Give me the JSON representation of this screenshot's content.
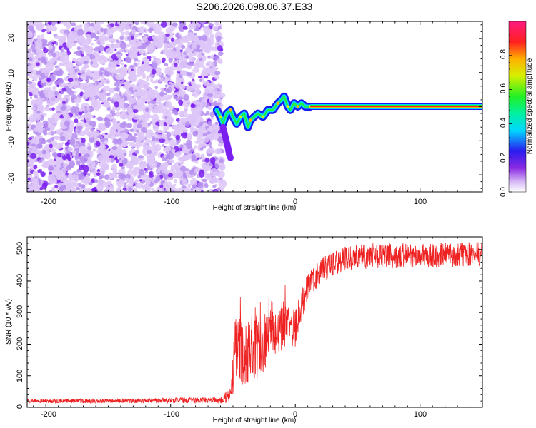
{
  "figure_title": "S206.2026.098.06.37.E33",
  "colors": {
    "snr_line": "#ee2222",
    "frame": "#000000",
    "background": "#ffffff",
    "noise_light": "#ddc6f8",
    "noise_mid": "#b58ef0",
    "noise_dark": "#7a1ff0"
  },
  "chart_data": [
    {
      "type": "heatmap",
      "title": "",
      "xlabel": "Height of straight line (km)",
      "ylabel": "Frequency (Hz)",
      "xlim": [
        -215,
        150
      ],
      "ylim": [
        -25,
        25
      ],
      "x_ticks": [
        -200,
        -100,
        0,
        100
      ],
      "x_tick_labels": [
        "-200",
        "-100",
        "0",
        "100"
      ],
      "y_ticks": [
        -20,
        -10,
        0,
        10,
        20
      ],
      "y_tick_labels": [
        "-20",
        "-10",
        "0",
        "10",
        "20"
      ],
      "colorbar": {
        "label": "Normalized spectral amplitude",
        "range": [
          0,
          1
        ],
        "ticks": [
          0,
          0.2,
          0.4,
          0.6,
          0.8
        ],
        "tick_labels": [
          "0.0",
          "0.2",
          "0.4",
          "0.6",
          "0.8"
        ],
        "colormap": "rainbow (white-purple-blue-cyan-green-yellow-red-magenta)"
      },
      "regions": [
        {
          "name": "noise",
          "x_range": [
            -215,
            -63
          ],
          "f_range": [
            -25,
            25
          ],
          "amplitude_range": [
            0.0,
            0.2
          ]
        },
        {
          "name": "carrier-turbulent",
          "x_range": [
            -63,
            12
          ],
          "amplitude_range": [
            0.2,
            0.9
          ]
        },
        {
          "name": "carrier-steady",
          "x_range": [
            12,
            150
          ],
          "frequency": 0,
          "amplitude": 0.9
        }
      ],
      "carrier_trace": [
        {
          "x": -63,
          "f": -1
        },
        {
          "x": -60,
          "f": -3
        },
        {
          "x": -58,
          "f": -5
        },
        {
          "x": -55,
          "f": -2
        },
        {
          "x": -52,
          "f": -1
        },
        {
          "x": -50,
          "f": -3
        },
        {
          "x": -47,
          "f": -5
        },
        {
          "x": -44,
          "f": -3
        },
        {
          "x": -41,
          "f": -2
        },
        {
          "x": -38,
          "f": -6
        },
        {
          "x": -36,
          "f": -4
        },
        {
          "x": -33,
          "f": -3
        },
        {
          "x": -30,
          "f": -2
        },
        {
          "x": -26,
          "f": -3
        },
        {
          "x": -22,
          "f": -1
        },
        {
          "x": -18,
          "f": -1
        },
        {
          "x": -14,
          "f": 1
        },
        {
          "x": -11,
          "f": 2
        },
        {
          "x": -9,
          "f": 3
        },
        {
          "x": -6,
          "f": 0
        },
        {
          "x": -4,
          "f": -1
        },
        {
          "x": -1,
          "f": 1
        },
        {
          "x": 2,
          "f": 0
        },
        {
          "x": 5,
          "f": 1
        },
        {
          "x": 8,
          "f": 0
        },
        {
          "x": 12,
          "f": 0
        },
        {
          "x": 150,
          "f": 0
        }
      ],
      "carrier_tail": [
        {
          "x": -58,
          "f": -6
        },
        {
          "x": -56,
          "f": -9
        },
        {
          "x": -54,
          "f": -12
        },
        {
          "x": -53,
          "f": -14
        },
        {
          "x": -52,
          "f": -15
        }
      ]
    },
    {
      "type": "line",
      "title": "",
      "xlabel": "Height of straight line (km)",
      "ylabel": "SNR (10 * v/v)",
      "xlim": [
        -215,
        150
      ],
      "ylim": [
        0,
        540
      ],
      "x_ticks": [
        -200,
        -100,
        0,
        100
      ],
      "x_tick_labels": [
        "-200",
        "-100",
        "0",
        "100"
      ],
      "y_ticks": [
        0,
        100,
        200,
        300,
        400,
        500
      ],
      "y_tick_labels": [
        "0",
        "100",
        "200",
        "300",
        "400",
        "500"
      ],
      "series": [
        {
          "name": "SNR",
          "envelope": [
            {
              "x": -215,
              "mean": 20,
              "spread": 6
            },
            {
              "x": -150,
              "mean": 20,
              "spread": 7
            },
            {
              "x": -100,
              "mean": 22,
              "spread": 8
            },
            {
              "x": -60,
              "mean": 22,
              "spread": 10
            },
            {
              "x": -52,
              "mean": 40,
              "spread": 25
            },
            {
              "x": -48,
              "mean": 170,
              "spread": 110
            },
            {
              "x": -44,
              "mean": 220,
              "spread": 130
            },
            {
              "x": -40,
              "mean": 120,
              "spread": 80
            },
            {
              "x": -35,
              "mean": 170,
              "spread": 110
            },
            {
              "x": -28,
              "mean": 200,
              "spread": 110
            },
            {
              "x": -20,
              "mean": 230,
              "spread": 80
            },
            {
              "x": -10,
              "mean": 250,
              "spread": 70
            },
            {
              "x": 0,
              "mean": 250,
              "spread": 60
            },
            {
              "x": 5,
              "mean": 340,
              "spread": 60
            },
            {
              "x": 12,
              "mean": 390,
              "spread": 40
            },
            {
              "x": 20,
              "mean": 430,
              "spread": 40
            },
            {
              "x": 30,
              "mean": 455,
              "spread": 40
            },
            {
              "x": 40,
              "mean": 470,
              "spread": 40
            },
            {
              "x": 60,
              "mean": 480,
              "spread": 40
            },
            {
              "x": 100,
              "mean": 480,
              "spread": 40
            },
            {
              "x": 150,
              "mean": 485,
              "spread": 40
            }
          ]
        }
      ]
    }
  ]
}
